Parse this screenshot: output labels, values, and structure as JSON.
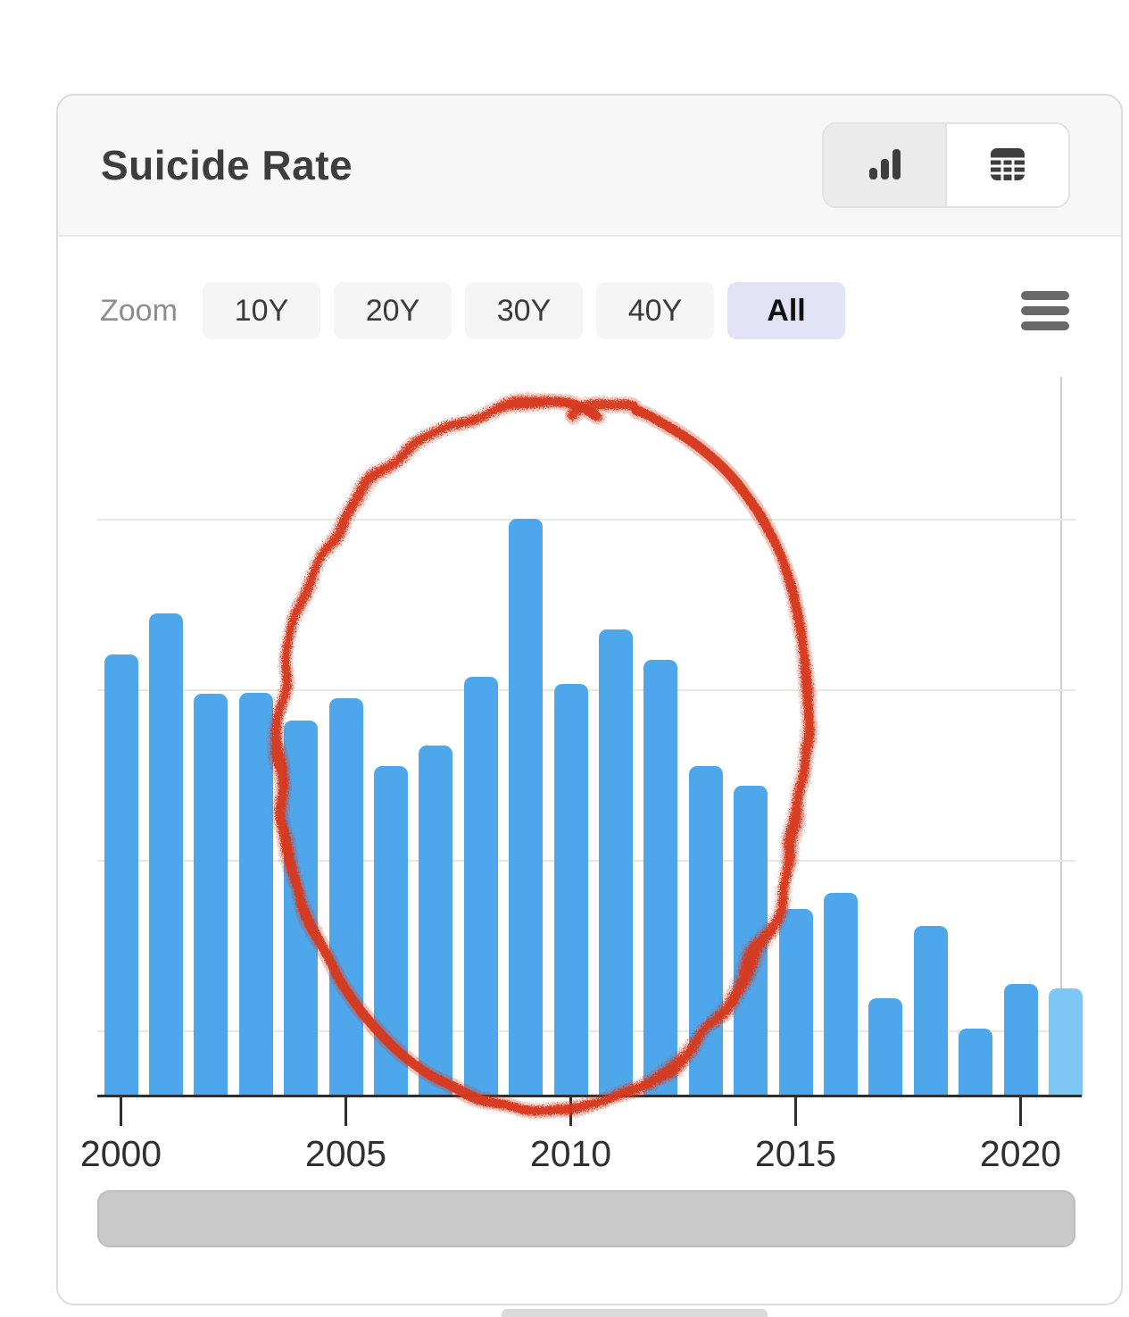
{
  "header": {
    "title": "Suicide Rate"
  },
  "view_toggle": {
    "selected": "chart",
    "options": [
      {
        "id": "chart",
        "icon": "bar-chart-icon",
        "active": true
      },
      {
        "id": "table",
        "icon": "table-icon",
        "active": false
      }
    ]
  },
  "zoom_controls": {
    "label": "Zoom",
    "buttons": [
      {
        "label": "10Y",
        "active": false
      },
      {
        "label": "20Y",
        "active": false
      },
      {
        "label": "30Y",
        "active": false
      },
      {
        "label": "40Y",
        "active": false
      },
      {
        "label": "All",
        "active": true
      }
    ]
  },
  "menu": {
    "icon": "hamburger-icon"
  },
  "chart_data": {
    "type": "bar",
    "title": "Suicide Rate",
    "categories": [
      "2000",
      "2001",
      "2002",
      "2003",
      "2004",
      "2005",
      "2006",
      "2007",
      "2008",
      "2009",
      "2010",
      "2011",
      "2012",
      "2013",
      "2014",
      "2015",
      "2016",
      "2017",
      "2018",
      "2019",
      "2020",
      "2021"
    ],
    "values": [
      61.4,
      67.1,
      56.0,
      56.1,
      52.2,
      55.3,
      45.9,
      48.8,
      58.3,
      80.3,
      57.3,
      64.9,
      60.7,
      45.9,
      43.2,
      26.1,
      28.3,
      13.6,
      23.7,
      9.4,
      15.6,
      15.0
    ],
    "value_unit": "relative bar height, % of plot height (y-axis has no labels)",
    "ylim": [
      0,
      100
    ],
    "x_tick_labels": [
      "2000",
      "2005",
      "2010",
      "2015",
      "2020"
    ],
    "gridlines": "4 horizontal unlabeled lines",
    "legend": "none",
    "last_bar_highlighted": true,
    "annotation": {
      "type": "hand-drawn red circle",
      "approx_years_enclosed": "2004-2015",
      "color": "#d6391d"
    }
  },
  "colors": {
    "bar": "#4fa7eb",
    "bar_highlight": "#7cc7f3",
    "annotation_red": "#d6391d",
    "selected_zoom_bg": "#e3e3f6",
    "header_bg": "#f7f7f7",
    "card_border": "#dbdbdb",
    "grid_line": "#e7e7e7",
    "axis_line": "#2e2e2e",
    "button_bg": "#f5f5f5",
    "navigator_fill": "#c9c9c9",
    "icon_dark": "#3e3e3e",
    "icon_gray": "#696969",
    "text_primary": "#3d3d3d",
    "text_secondary": "#8d8d8d"
  }
}
